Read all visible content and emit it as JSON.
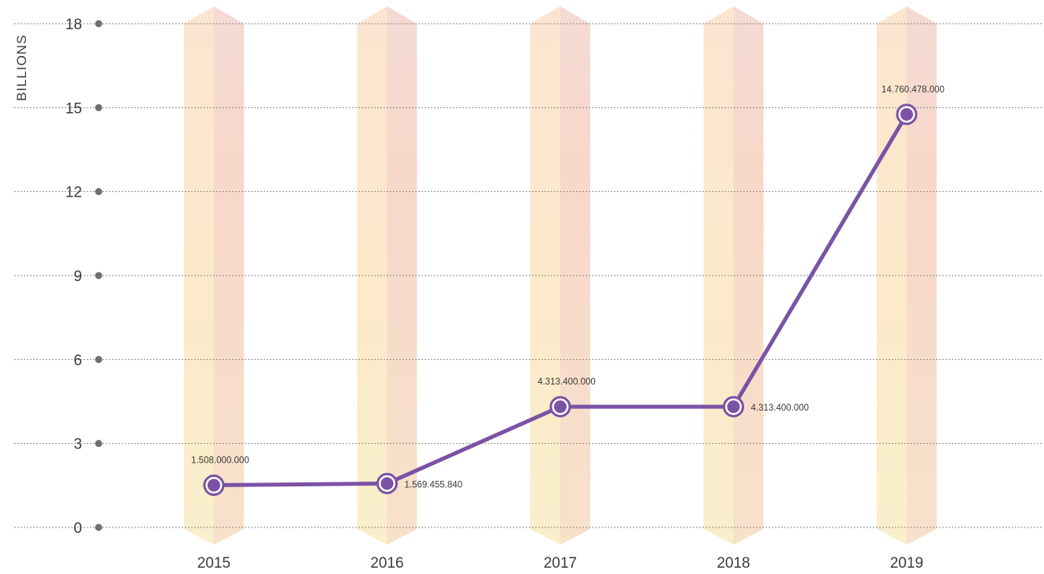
{
  "chart_data": {
    "type": "line",
    "ylabel": "BILLIONS",
    "xlabel": "",
    "ylim": [
      0,
      18
    ],
    "yticks": [
      0,
      3,
      6,
      9,
      12,
      15,
      18
    ],
    "ytick_labels": [
      "0",
      "3",
      "6",
      "9",
      "12",
      "15",
      "18"
    ],
    "grid": true,
    "categories": [
      "2015",
      "2016",
      "2017",
      "2018",
      "2019"
    ],
    "values": [
      1.508,
      1.569,
      4.313,
      4.313,
      14.76
    ],
    "data_labels": [
      "1.508.000.000",
      "1.569.455.840",
      "4.313.400.000",
      "4.313.400.000",
      "14.760.478.000"
    ],
    "colors": {
      "line": "#7b52a5",
      "grid": "#8a8a8a",
      "column_light": "#fbe3c4",
      "column_dark": "#f6d2b8",
      "tick_dot": "#6f6f6f"
    }
  }
}
